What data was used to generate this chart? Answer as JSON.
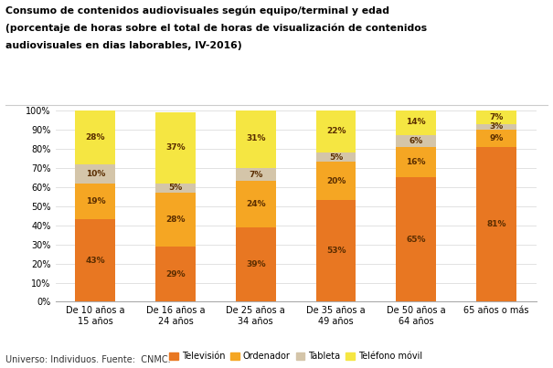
{
  "title_line1": "Consumo de contenidos audiovisuales según equipo/terminal y edad",
  "title_line2": "(porcentaje de horas sobre el total de horas de visualización de contenidos",
  "title_line3": "audiovisuales en dias laborables, IV-2016)",
  "categories": [
    "De 10 años a\n15 años",
    "De 16 años a\n24 años",
    "De 25 años a\n34 años",
    "De 35 años a\n49 años",
    "De 50 años a\n64 años",
    "65 años o más"
  ],
  "television": [
    43,
    29,
    39,
    53,
    65,
    81
  ],
  "ordenador": [
    19,
    28,
    24,
    20,
    16,
    9
  ],
  "tableta": [
    10,
    5,
    7,
    5,
    6,
    3
  ],
  "telefono_movil": [
    28,
    37,
    31,
    22,
    14,
    7
  ],
  "col_television": "#e87722",
  "col_ordenador": "#f5a623",
  "col_tableta": "#d4c5a9",
  "col_telefono": "#f5e642",
  "footer": "Universo: Individuos. Fuente:  CNMC.",
  "ylim": [
    0,
    100
  ],
  "yticks": [
    0,
    10,
    20,
    30,
    40,
    50,
    60,
    70,
    80,
    90,
    100
  ],
  "ytick_labels": [
    "0%",
    "10%",
    "20%",
    "30%",
    "40%",
    "50%",
    "60%",
    "70%",
    "80%",
    "90%",
    "100%"
  ]
}
